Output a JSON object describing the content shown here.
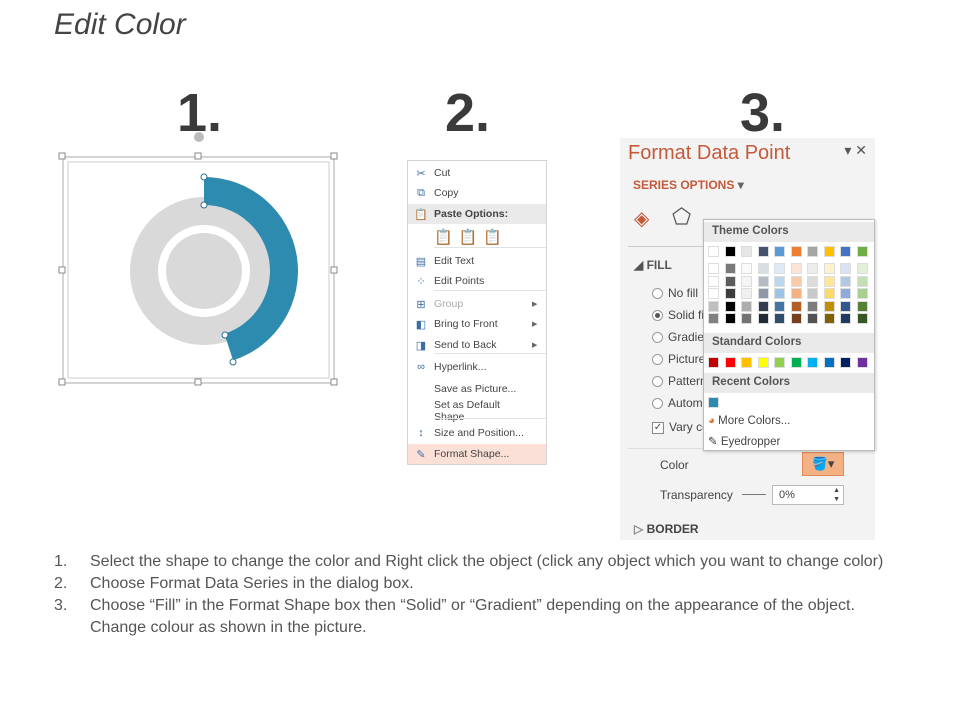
{
  "title": "Edit Color",
  "step_numbers": [
    "1.",
    "2.",
    "3."
  ],
  "context_menu": {
    "items": [
      {
        "label": "Cut",
        "icon": "scissors-icon"
      },
      {
        "label": "Copy",
        "icon": "copy-icon"
      },
      {
        "label": "Paste Options:",
        "icon": "paste-icon"
      },
      {
        "label": "Edit Text",
        "icon": "edit-text-icon"
      },
      {
        "label": "Edit Points",
        "icon": "edit-points-icon"
      },
      {
        "label": "Group",
        "icon": "group-icon",
        "disabled": true,
        "submenu": true
      },
      {
        "label": "Bring to Front",
        "icon": "bring-front-icon",
        "submenu": true
      },
      {
        "label": "Send to Back",
        "icon": "send-back-icon",
        "submenu": true
      },
      {
        "label": "Hyperlink...",
        "icon": "hyperlink-icon"
      },
      {
        "label": "Save as Picture..."
      },
      {
        "label": "Set as Default Shape"
      },
      {
        "label": "Size and Position...",
        "icon": "size-icon"
      },
      {
        "label": "Format Shape...",
        "icon": "format-shape-icon",
        "highlighted": true
      }
    ]
  },
  "format_panel": {
    "title": "Format Data Point",
    "series_options": "SERIES OPTIONS",
    "fill_section": "FILL",
    "options": [
      "No fill",
      "Solid fill",
      "Gradient fill",
      "Picture or texture fill",
      "Pattern fill",
      "Automatic",
      "Vary colors by point"
    ],
    "options_visible": [
      "No fill",
      "Solid fi",
      "Gradie",
      "Picture",
      "Pattern",
      "Autom",
      "Vary co"
    ],
    "selected": "Solid fill",
    "color_label": "Color",
    "transparency_label": "Transparency",
    "transparency_value": "0%",
    "border_section": "BORDER"
  },
  "color_popup": {
    "theme_label": "Theme Colors",
    "theme_colors": [
      "#ffffff",
      "#000000",
      "#e7e6e6",
      "#44546a",
      "#5b9bd5",
      "#ed7d31",
      "#a5a5a5",
      "#ffc000",
      "#4472c4",
      "#70ad47"
    ],
    "standard_label": "Standard Colors",
    "standard_colors": [
      "#c00000",
      "#ff0000",
      "#ffc000",
      "#ffff00",
      "#92d050",
      "#00b050",
      "#00b0f0",
      "#0070c0",
      "#002060",
      "#7030a0"
    ],
    "recent_label": "Recent Colors",
    "recent_colors": [
      "#2e8bb0"
    ],
    "more_colors": "More Colors...",
    "eyedropper": "Eyedropper"
  },
  "colors": {
    "accent": "#2e8bb0",
    "donut_gray": "#d9d9d9",
    "panel_title": "#c55a3a"
  },
  "instructions": [
    "Select the shape to change the color and Right click the object (click any object which you want to change color)",
    "Choose Format Data Series in the dialog box.",
    "Choose “Fill” in the Format Shape box then “Solid” or “Gradient” depending on the appearance of the object. Change colour as shown in the picture."
  ]
}
